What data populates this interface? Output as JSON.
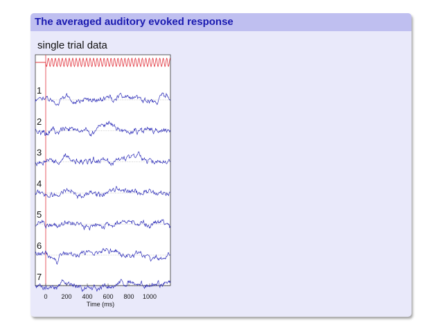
{
  "slide": {
    "title": "The averaged auditory evoked response"
  },
  "figure": {
    "subtitle": "single trial data",
    "xlabel": "Time (ms)",
    "xticks": [
      "0",
      "200",
      "400",
      "600",
      "800",
      "1000"
    ],
    "trial_labels": [
      "1",
      "2",
      "3",
      "4",
      "5",
      "6",
      "7"
    ],
    "colors": {
      "trace": "#2b2bb8",
      "stimulus": "#e0303a",
      "onset_line": "#e0303a",
      "baseline": "#9a9a9a"
    }
  },
  "chart_data": {
    "type": "line",
    "title": "",
    "xlabel": "Time (ms)",
    "ylabel": "",
    "xlim": [
      -100,
      1200
    ],
    "x_ticks": [
      0,
      200,
      400,
      600,
      800,
      1000
    ],
    "onset_ms": 0,
    "series": [
      {
        "name": "1"
      },
      {
        "name": "2"
      },
      {
        "name": "3"
      },
      {
        "name": "4"
      },
      {
        "name": "5"
      },
      {
        "name": "6"
      },
      {
        "name": "7"
      }
    ]
  }
}
